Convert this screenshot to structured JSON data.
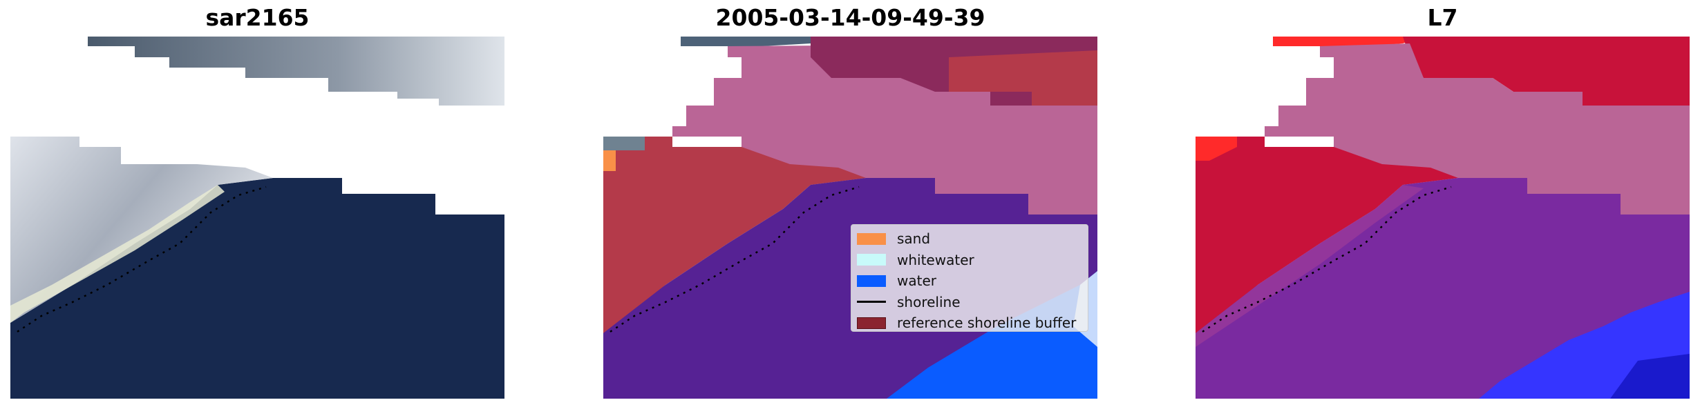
{
  "panels": [
    {
      "title": "sar2165"
    },
    {
      "title": "2005-03-14-09-49-39"
    },
    {
      "title": "L7"
    }
  ],
  "legend": {
    "items": [
      {
        "label": "sand",
        "kind": "patch",
        "color": "#f99048"
      },
      {
        "label": "whitewater",
        "kind": "patch",
        "color": "#c8fafa"
      },
      {
        "label": "water",
        "kind": "patch",
        "color": "#0a5cff"
      },
      {
        "label": "shoreline",
        "kind": "line",
        "color": "#000000"
      },
      {
        "label": "reference shoreline buffer",
        "kind": "patch",
        "color": "#8b2430"
      }
    ]
  },
  "colors": {
    "satellite_water": "#17294f",
    "satellite_cloud": "#c9ced6",
    "class_sand": "#f99048",
    "class_water": "#0a5cff",
    "overlay_land": "#ba6596",
    "overlay_buffer": "#b43a4a",
    "overlay_sea": "#562294",
    "l7_red": "#c8123a",
    "l7_purple": "#7a2aa0",
    "l7_blue": "#3535ff"
  }
}
